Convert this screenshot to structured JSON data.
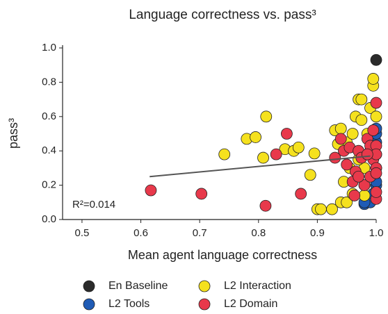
{
  "chart_data": {
    "type": "scatter",
    "title": "Language correctness vs. pass³",
    "x_label": "Mean agent language correctness",
    "y_label": "pass³",
    "annotation": "R²=0.014",
    "xlim": [
      0.467,
      1.0
    ],
    "ylim": [
      0,
      1.0
    ],
    "xticks": [
      0.5,
      0.6,
      0.7,
      0.8,
      0.9,
      {
        "value": 1.0,
        "label": "1.0"
      }
    ],
    "yticks": [
      {
        "value": 0,
        "label": "0.0"
      },
      0.2,
      0.4,
      0.6,
      0.8,
      {
        "value": 1.0,
        "label": "1.0"
      }
    ],
    "grid": false,
    "legend": "bottom",
    "trendline": {
      "x": [
        0.615,
        0.99
      ],
      "y": [
        0.25,
        0.37
      ],
      "color": "#555555"
    },
    "series": [
      {
        "name": "En Baseline",
        "color": "#2b2b2b",
        "x": [
          1.0
        ],
        "y": [
          0.93
        ]
      },
      {
        "name": "L2 Tools",
        "color": "#1f5bb5",
        "x": [
          0.98,
          0.985,
          0.99,
          1.0,
          1.0,
          1.0,
          1.0,
          1.0,
          1.0,
          1.0,
          0.995,
          0.98
        ],
        "y": [
          0.09,
          0.12,
          0.1,
          0.2,
          0.22,
          0.3,
          0.38,
          0.45,
          0.5,
          0.53,
          0.15,
          0.1
        ]
      },
      {
        "name": "L2 Interaction",
        "color": "#f5e11e",
        "x": [
          0.742,
          0.78,
          0.795,
          0.808,
          0.813,
          0.845,
          0.86,
          0.868,
          0.888,
          0.895,
          0.9,
          0.906,
          0.925,
          0.93,
          0.94,
          0.94,
          0.95,
          0.95,
          0.96,
          0.965,
          0.97,
          0.975,
          0.975,
          0.98,
          0.98,
          0.985,
          0.99,
          0.995,
          0.995,
          0.99,
          0.97,
          0.955,
          0.945,
          0.96,
          1.0,
          0.98,
          0.935
        ],
        "y": [
          0.38,
          0.47,
          0.48,
          0.36,
          0.6,
          0.41,
          0.4,
          0.42,
          0.26,
          0.385,
          0.06,
          0.06,
          0.06,
          0.52,
          0.53,
          0.1,
          0.1,
          0.45,
          0.5,
          0.6,
          0.7,
          0.7,
          0.58,
          0.3,
          0.2,
          0.5,
          0.65,
          0.78,
          0.82,
          0.4,
          0.35,
          0.3,
          0.22,
          0.15,
          0.6,
          0.14,
          0.44
        ]
      },
      {
        "name": "L2 Domain",
        "color": "#e8394b",
        "x": [
          0.617,
          0.703,
          0.812,
          0.83,
          0.848,
          0.872,
          0.93,
          0.94,
          0.945,
          0.95,
          0.955,
          0.96,
          0.963,
          0.965,
          0.97,
          0.975,
          0.98,
          0.985,
          0.99,
          0.99,
          0.995,
          1.0,
          1.0,
          1.0,
          1.0,
          1.0,
          1.0,
          1.0,
          0.995,
          0.97,
          0.985
        ],
        "y": [
          0.17,
          0.15,
          0.08,
          0.38,
          0.5,
          0.15,
          0.36,
          0.47,
          0.4,
          0.32,
          0.42,
          0.22,
          0.14,
          0.28,
          0.4,
          0.36,
          0.2,
          0.47,
          0.43,
          0.25,
          0.35,
          0.68,
          0.43,
          0.38,
          0.3,
          0.12,
          0.16,
          0.27,
          0.52,
          0.25,
          0.38
        ]
      }
    ]
  }
}
